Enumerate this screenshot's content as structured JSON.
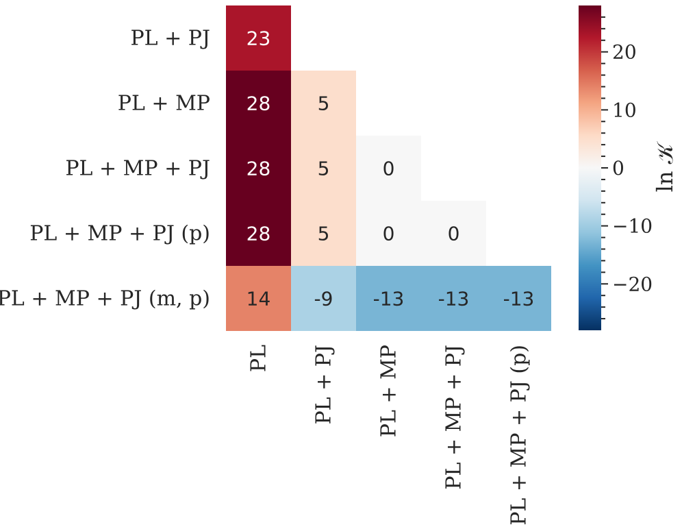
{
  "chart_data": {
    "type": "heatmap",
    "title": "",
    "rows": [
      "PL + PJ",
      "PL + MP",
      "PL + MP + PJ",
      "PL + MP + PJ (p)",
      "PL + MP + PJ (m, p)"
    ],
    "columns": [
      "PL",
      "PL + PJ",
      "PL + MP",
      "PL + MP + PJ",
      "PL + MP + PJ (p)"
    ],
    "values": [
      [
        23,
        null,
        null,
        null,
        null
      ],
      [
        28,
        5,
        null,
        null,
        null
      ],
      [
        28,
        5,
        0,
        null,
        null
      ],
      [
        28,
        5,
        0,
        0,
        null
      ],
      [
        14,
        -9,
        -13,
        -13,
        -13
      ]
    ],
    "mask": "upper-triangle",
    "colormap": "RdBu_r",
    "vmin": -28,
    "vmax": 28,
    "colorbar": {
      "label": "ln 𝒦",
      "ticks": [
        20,
        10,
        0,
        -10,
        -20
      ],
      "tick_labels": [
        "20",
        "10",
        "0",
        "−10",
        "−20"
      ]
    }
  }
}
